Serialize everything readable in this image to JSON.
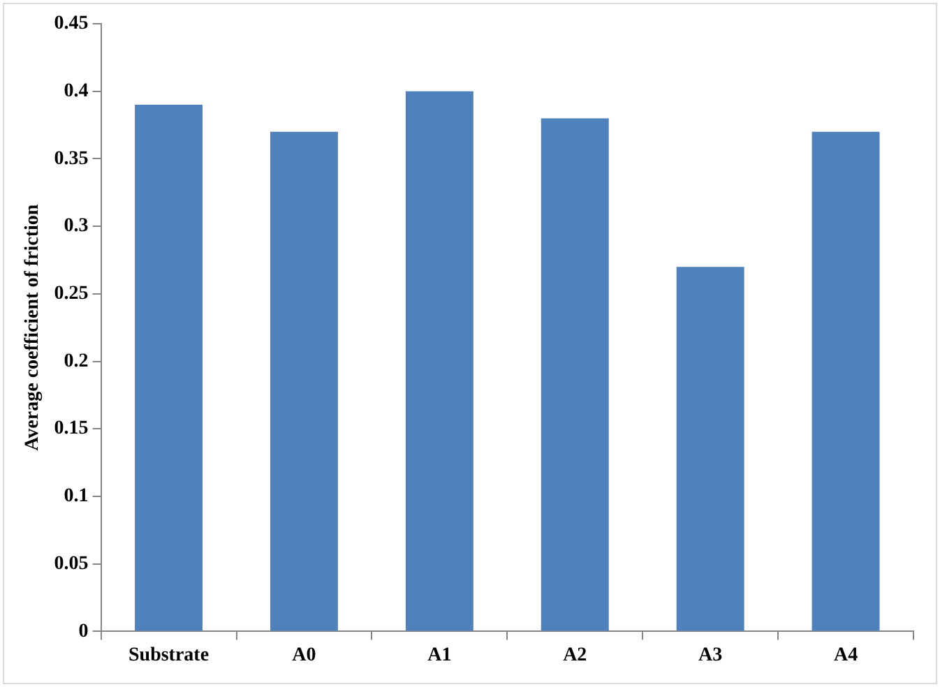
{
  "chart_data": {
    "type": "bar",
    "ylabel": "Average coefficient of friction",
    "categories": [
      "Substrate",
      "A0",
      "A1",
      "A2",
      "A3",
      "A4"
    ],
    "values": [
      0.39,
      0.37,
      0.4,
      0.38,
      0.27,
      0.37
    ],
    "color": "#4f81bd",
    "ylim": [
      0,
      0.45
    ],
    "yticks": [
      0,
      0.05,
      0.1,
      0.15,
      0.2,
      0.25,
      0.3,
      0.35,
      0.4,
      0.45
    ],
    "grid": false,
    "legend": false
  }
}
